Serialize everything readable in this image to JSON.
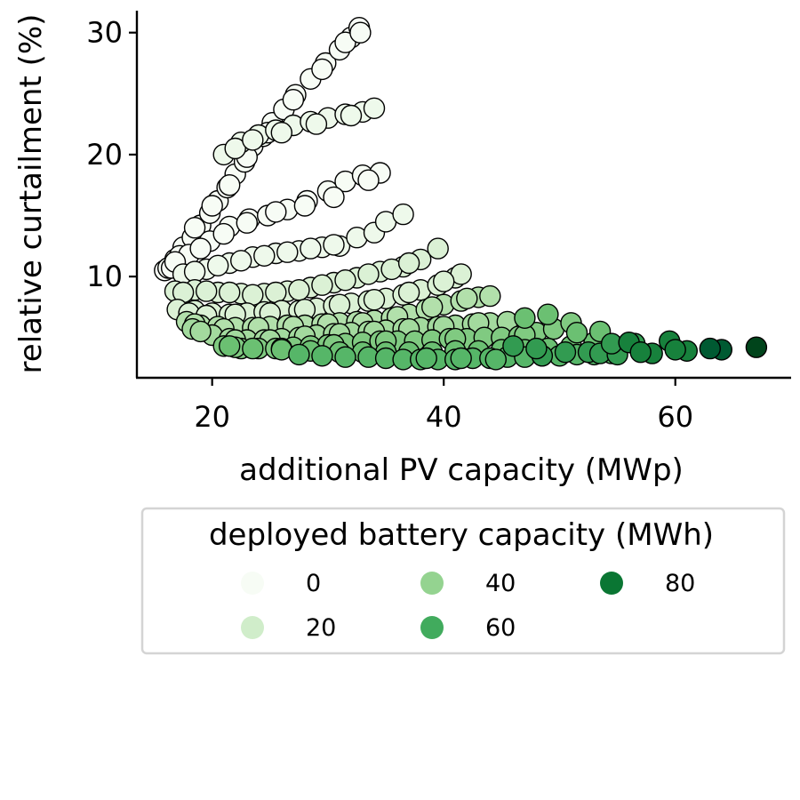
{
  "chart_data": {
    "type": "scatter",
    "xlabel": "additional PV capacity (MWp)",
    "ylabel": "relative curtailment (%)",
    "xlim": [
      13.5,
      70
    ],
    "ylim": [
      1.7,
      31.8
    ],
    "xticks": [
      20,
      40,
      60
    ],
    "yticks": [
      10,
      20,
      30
    ],
    "grid": false,
    "legend": {
      "title": "deployed battery capacity (MWh)",
      "placement": "below plot",
      "entries": [
        {
          "label": "0",
          "value": 0,
          "color": "#f7fcf5"
        },
        {
          "label": "20",
          "value": 20,
          "color": "#d0edca"
        },
        {
          "label": "40",
          "value": 40,
          "color": "#94d390"
        },
        {
          "label": "60",
          "value": 60,
          "color": "#41ab5d"
        },
        {
          "label": "80",
          "value": 80,
          "color": "#0a7633"
        }
      ]
    },
    "colormap": {
      "name": "Greens",
      "stops": [
        [
          0,
          "#f7fcf5"
        ],
        [
          10,
          "#e5f5e0"
        ],
        [
          20,
          "#d0edca"
        ],
        [
          30,
          "#b2e0ab"
        ],
        [
          40,
          "#94d390"
        ],
        [
          50,
          "#6bc072"
        ],
        [
          60,
          "#41ab5d"
        ],
        [
          70,
          "#238b45"
        ],
        [
          80,
          "#0a7633"
        ],
        [
          90,
          "#005a32"
        ],
        [
          100,
          "#00441b"
        ]
      ]
    },
    "series": [
      {
        "battery": 0,
        "points": [
          [
            15.9,
            10.5
          ],
          [
            16.8,
            11.4
          ],
          [
            17.5,
            12.4
          ],
          [
            18.3,
            13.2
          ],
          [
            19.0,
            14.2
          ],
          [
            19.8,
            15.2
          ],
          [
            20.5,
            16.2
          ],
          [
            21.3,
            17.3
          ],
          [
            22.0,
            18.4
          ],
          [
            22.8,
            19.4
          ],
          [
            23.5,
            20.7
          ],
          [
            24.4,
            21.5
          ],
          [
            25.2,
            22.6
          ],
          [
            26.2,
            23.7
          ],
          [
            27.2,
            24.9
          ],
          [
            28.5,
            26.2
          ],
          [
            29.8,
            27.5
          ],
          [
            31.0,
            28.6
          ],
          [
            32.0,
            29.6
          ],
          [
            32.7,
            30.4
          ],
          [
            16.2,
            10.7
          ],
          [
            17.2,
            11.7
          ],
          [
            18.5,
            14.0
          ],
          [
            20.0,
            15.8
          ],
          [
            21.5,
            17.5
          ],
          [
            23.0,
            19.8
          ],
          [
            24.8,
            21.8
          ],
          [
            27.0,
            24.5
          ],
          [
            29.5,
            27.0
          ],
          [
            31.5,
            29.2
          ],
          [
            32.8,
            30.0
          ]
        ]
      },
      {
        "battery": 0,
        "points": [
          [
            16.5,
            10.7
          ],
          [
            18.0,
            11.8
          ],
          [
            19.8,
            12.9
          ],
          [
            21.5,
            14.1
          ],
          [
            23.2,
            14.7
          ],
          [
            24.8,
            15.0
          ],
          [
            26.5,
            15.5
          ],
          [
            28.2,
            16.2
          ],
          [
            30.0,
            17.0
          ],
          [
            31.5,
            17.8
          ],
          [
            33.0,
            18.3
          ],
          [
            34.5,
            18.5
          ],
          [
            16.8,
            11.2
          ],
          [
            19.0,
            12.3
          ],
          [
            21.0,
            13.5
          ],
          [
            23.0,
            14.4
          ],
          [
            25.5,
            15.3
          ],
          [
            28.0,
            15.8
          ],
          [
            30.5,
            16.5
          ],
          [
            33.5,
            17.9
          ]
        ]
      },
      {
        "battery": 5,
        "points": [
          [
            17.5,
            10.2
          ],
          [
            19.5,
            10.6
          ],
          [
            21.5,
            11.1
          ],
          [
            23.5,
            11.6
          ],
          [
            25.5,
            11.9
          ],
          [
            27.5,
            12.1
          ],
          [
            29.5,
            12.4
          ],
          [
            31.0,
            12.5
          ],
          [
            32.5,
            13.2
          ],
          [
            34.0,
            13.6
          ],
          [
            35.0,
            14.5
          ],
          [
            36.5,
            15.1
          ],
          [
            18.5,
            10.4
          ],
          [
            20.5,
            10.9
          ],
          [
            22.5,
            11.3
          ],
          [
            24.5,
            11.7
          ],
          [
            26.5,
            12.0
          ],
          [
            28.5,
            12.3
          ],
          [
            30.5,
            12.6
          ]
        ]
      },
      {
        "battery": 5,
        "points": [
          [
            21.0,
            20.0
          ],
          [
            22.5,
            21.0
          ],
          [
            24.0,
            21.6
          ],
          [
            25.5,
            22.0
          ],
          [
            27.0,
            22.4
          ],
          [
            28.5,
            22.7
          ],
          [
            30.0,
            23.0
          ],
          [
            31.5,
            23.3
          ],
          [
            33.0,
            23.5
          ],
          [
            34.0,
            23.8
          ],
          [
            22.0,
            20.5
          ],
          [
            23.5,
            21.2
          ],
          [
            26.0,
            21.8
          ],
          [
            29.0,
            22.5
          ],
          [
            32.0,
            23.2
          ]
        ]
      },
      {
        "battery": 15,
        "points": [
          [
            16.8,
            8.8
          ],
          [
            18.5,
            8.9
          ],
          [
            20.5,
            8.7
          ],
          [
            22.5,
            8.6
          ],
          [
            24.5,
            8.6
          ],
          [
            26.5,
            8.8
          ],
          [
            28.5,
            9.1
          ],
          [
            30.5,
            9.5
          ],
          [
            32.5,
            9.9
          ],
          [
            34.5,
            10.4
          ],
          [
            36.5,
            10.8
          ],
          [
            38.0,
            11.4
          ],
          [
            39.5,
            12.3
          ],
          [
            17.5,
            8.7
          ],
          [
            19.5,
            8.8
          ],
          [
            21.5,
            8.7
          ],
          [
            23.5,
            8.5
          ],
          [
            25.5,
            8.7
          ],
          [
            27.5,
            8.9
          ],
          [
            29.5,
            9.3
          ],
          [
            31.5,
            9.7
          ],
          [
            33.5,
            10.2
          ],
          [
            35.5,
            10.6
          ],
          [
            37.0,
            11.1
          ]
        ]
      },
      {
        "battery": 15,
        "points": [
          [
            17.0,
            7.3
          ],
          [
            18.5,
            7.2
          ],
          [
            20.0,
            7.0
          ],
          [
            21.5,
            6.9
          ],
          [
            23.0,
            7.0
          ],
          [
            24.5,
            7.1
          ],
          [
            26.0,
            7.2
          ],
          [
            27.5,
            7.2
          ],
          [
            29.0,
            7.4
          ],
          [
            30.5,
            7.6
          ],
          [
            32.0,
            7.8
          ],
          [
            33.5,
            8.0
          ],
          [
            35.0,
            8.2
          ],
          [
            36.5,
            8.5
          ],
          [
            38.0,
            8.9
          ],
          [
            39.5,
            9.3
          ],
          [
            41.0,
            9.9
          ],
          [
            41.5,
            10.2
          ],
          [
            18.0,
            7.0
          ],
          [
            19.5,
            6.8
          ],
          [
            22.0,
            6.9
          ],
          [
            25.0,
            7.0
          ],
          [
            28.0,
            7.3
          ],
          [
            31.0,
            7.7
          ],
          [
            34.0,
            8.1
          ],
          [
            37.0,
            8.7
          ],
          [
            40.0,
            9.6
          ]
        ]
      },
      {
        "battery": 30,
        "points": [
          [
            17.8,
            6.3
          ],
          [
            19.0,
            6.0
          ],
          [
            20.5,
            5.9
          ],
          [
            22.0,
            5.8
          ],
          [
            23.5,
            5.8
          ],
          [
            25.0,
            5.9
          ],
          [
            26.5,
            6.0
          ],
          [
            28.0,
            6.0
          ],
          [
            29.5,
            6.1
          ],
          [
            31.0,
            6.2
          ],
          [
            32.5,
            6.3
          ],
          [
            34.0,
            6.4
          ],
          [
            35.5,
            6.6
          ],
          [
            37.0,
            6.9
          ],
          [
            38.5,
            7.3
          ],
          [
            40.0,
            7.7
          ],
          [
            41.5,
            8.0
          ],
          [
            43.0,
            8.3
          ],
          [
            44.0,
            8.4
          ],
          [
            18.5,
            6.1
          ],
          [
            21.0,
            5.7
          ],
          [
            24.0,
            5.8
          ],
          [
            27.0,
            5.9
          ],
          [
            30.0,
            6.1
          ],
          [
            33.0,
            6.2
          ],
          [
            36.0,
            6.7
          ],
          [
            39.0,
            7.5
          ],
          [
            42.0,
            8.2
          ]
        ]
      },
      {
        "battery": 35,
        "points": [
          [
            18.3,
            5.7
          ],
          [
            20.0,
            5.2
          ],
          [
            21.5,
            4.9
          ],
          [
            23.0,
            4.8
          ],
          [
            24.5,
            4.8
          ],
          [
            26.0,
            4.9
          ],
          [
            27.5,
            5.0
          ],
          [
            29.0,
            5.2
          ],
          [
            30.5,
            5.3
          ],
          [
            32.0,
            5.4
          ],
          [
            33.5,
            5.5
          ],
          [
            35.0,
            5.6
          ],
          [
            36.5,
            5.7
          ],
          [
            38.0,
            5.8
          ],
          [
            39.5,
            5.9
          ],
          [
            41.0,
            6.0
          ],
          [
            42.5,
            6.1
          ],
          [
            44.0,
            6.2
          ],
          [
            45.5,
            6.3
          ],
          [
            19.0,
            5.5
          ],
          [
            22.0,
            4.8
          ],
          [
            25.0,
            4.8
          ],
          [
            28.0,
            5.1
          ],
          [
            31.0,
            5.3
          ],
          [
            34.0,
            5.5
          ],
          [
            37.0,
            5.7
          ],
          [
            40.0,
            5.9
          ],
          [
            43.0,
            6.2
          ]
        ]
      },
      {
        "battery": 45,
        "points": [
          [
            21.0,
            4.3
          ],
          [
            22.5,
            4.1
          ],
          [
            24.0,
            4.1
          ],
          [
            25.5,
            4.1
          ],
          [
            27.0,
            4.2
          ],
          [
            28.5,
            4.3
          ],
          [
            30.0,
            4.4
          ],
          [
            31.5,
            4.5
          ],
          [
            33.0,
            4.6
          ],
          [
            34.5,
            4.7
          ],
          [
            36.0,
            4.7
          ],
          [
            37.5,
            4.7
          ],
          [
            39.0,
            4.8
          ],
          [
            40.5,
            4.9
          ],
          [
            42.0,
            4.9
          ],
          [
            43.5,
            5.0
          ],
          [
            45.0,
            5.0
          ],
          [
            46.5,
            5.1
          ],
          [
            48.0,
            5.4
          ],
          [
            49.5,
            5.7
          ],
          [
            51.0,
            6.2
          ],
          [
            22.0,
            4.2
          ],
          [
            26.0,
            4.1
          ],
          [
            30.5,
            4.4
          ],
          [
            35.0,
            4.7
          ],
          [
            41.0,
            4.9
          ],
          [
            47.0,
            5.2
          ]
        ]
      },
      {
        "battery": 50,
        "points": [
          [
            21.5,
            4.3
          ],
          [
            23.5,
            4.1
          ],
          [
            26.0,
            4.0
          ],
          [
            28.5,
            3.9
          ],
          [
            31.0,
            3.8
          ],
          [
            33.0,
            3.8
          ],
          [
            35.0,
            3.8
          ],
          [
            37.0,
            3.8
          ],
          [
            39.0,
            3.8
          ],
          [
            41.0,
            3.9
          ],
          [
            43.0,
            3.9
          ],
          [
            45.0,
            4.0
          ],
          [
            47.0,
            4.0
          ],
          [
            49.0,
            4.1
          ],
          [
            51.0,
            4.3
          ],
          [
            53.0,
            4.6
          ],
          [
            47.0,
            6.6
          ],
          [
            49.0,
            6.9
          ],
          [
            51.5,
            5.4
          ],
          [
            53.5,
            5.5
          ]
        ]
      },
      {
        "battery": 55,
        "points": [
          [
            27.5,
            3.6
          ],
          [
            29.5,
            3.5
          ],
          [
            31.5,
            3.4
          ],
          [
            33.5,
            3.4
          ],
          [
            35.0,
            3.3
          ],
          [
            36.5,
            3.2
          ],
          [
            38.0,
            3.2
          ],
          [
            39.5,
            3.2
          ],
          [
            41.0,
            3.2
          ],
          [
            42.5,
            3.3
          ],
          [
            44.0,
            3.3
          ],
          [
            45.5,
            3.4
          ],
          [
            47.0,
            3.4
          ],
          [
            48.5,
            3.5
          ],
          [
            50.0,
            3.5
          ],
          [
            51.5,
            3.6
          ],
          [
            53.0,
            3.6
          ],
          [
            54.5,
            3.7
          ],
          [
            44.5,
            3.2
          ],
          [
            41.5,
            3.3
          ],
          [
            38.5,
            3.3
          ]
        ]
      },
      {
        "battery": 65,
        "points": [
          [
            48.5,
            3.5
          ],
          [
            50.5,
            3.8
          ],
          [
            52.5,
            3.8
          ],
          [
            53.5,
            3.7
          ],
          [
            55.0,
            3.6
          ],
          [
            54.5,
            4.5
          ],
          [
            56.5,
            4.5
          ],
          [
            48.0,
            4.1
          ],
          [
            46.0,
            4.3
          ]
        ]
      },
      {
        "battery": 75,
        "points": [
          [
            56.0,
            4.6
          ],
          [
            58.0,
            3.7
          ],
          [
            59.5,
            4.7
          ],
          [
            61.0,
            3.9
          ],
          [
            60.0,
            4.0
          ],
          [
            57.0,
            3.8
          ]
        ]
      },
      {
        "battery": 90,
        "points": [
          [
            64.0,
            4.0
          ],
          [
            63.0,
            4.1
          ]
        ]
      },
      {
        "battery": 100,
        "points": [
          [
            67.0,
            4.2
          ]
        ]
      }
    ]
  }
}
